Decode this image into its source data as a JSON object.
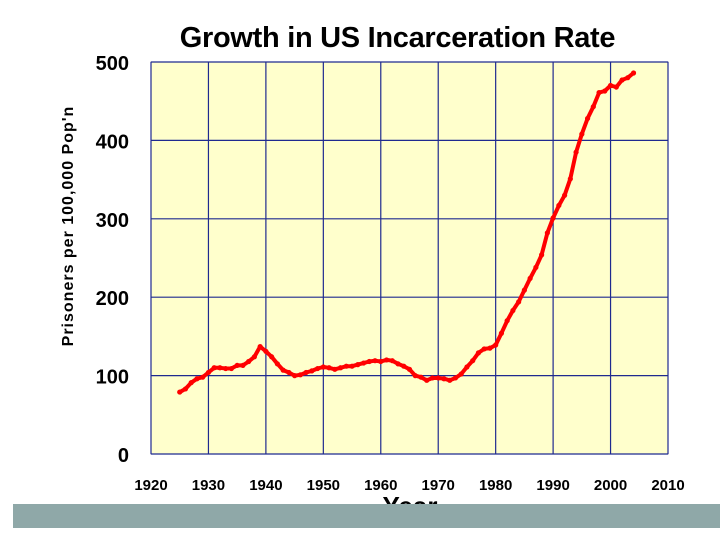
{
  "chart_data": {
    "type": "line",
    "title": "Growth in US Incarceration Rate",
    "xlabel": "Year",
    "ylabel": "Prisoners per 100,000 Pop'n",
    "xlim": [
      1920,
      2010
    ],
    "ylim": [
      0,
      500
    ],
    "x_ticks": [
      1920,
      1930,
      1940,
      1950,
      1960,
      1970,
      1980,
      1990,
      2000,
      2010
    ],
    "y_ticks": [
      0,
      100,
      200,
      300,
      400,
      500
    ],
    "grid": true,
    "legend": "none",
    "colors": {
      "plot_background": "#ffffcc",
      "grid": "#1f2a8f",
      "series": "#ff0000",
      "footer_bar": "#8fa8a8"
    },
    "series": [
      {
        "x": [
          1925,
          1926,
          1927,
          1928,
          1929,
          1930,
          1931,
          1932,
          1933,
          1934,
          1935,
          1936,
          1937,
          1938,
          1939,
          1940,
          1941,
          1942,
          1943,
          1944,
          1945,
          1946,
          1947,
          1948,
          1949,
          1950,
          1951,
          1952,
          1953,
          1954,
          1955,
          1956,
          1957,
          1958,
          1959,
          1960,
          1961,
          1962,
          1963,
          1964,
          1965,
          1966,
          1967,
          1968,
          1969,
          1970,
          1971,
          1972,
          1973,
          1974,
          1975,
          1976,
          1977,
          1978,
          1979,
          1980,
          1981,
          1982,
          1983,
          1984,
          1985,
          1986,
          1987,
          1988,
          1989,
          1990,
          1991,
          1992,
          1993,
          1994,
          1995,
          1996,
          1997,
          1998,
          1999,
          2000,
          2001,
          2002,
          2003,
          2004
        ],
        "values": [
          79,
          83,
          91,
          96,
          98,
          104,
          110,
          110,
          109,
          109,
          113,
          113,
          118,
          124,
          137,
          131,
          124,
          115,
          107,
          104,
          100,
          101,
          104,
          106,
          109,
          111,
          110,
          108,
          110,
          112,
          112,
          114,
          116,
          118,
          119,
          118,
          120,
          119,
          115,
          112,
          108,
          100,
          98,
          94,
          97,
          97,
          96,
          94,
          97,
          102,
          111,
          119,
          129,
          134,
          135,
          139,
          154,
          170,
          183,
          194,
          209,
          224,
          238,
          254,
          282,
          301,
          317,
          330,
          351,
          385,
          408,
          428,
          443,
          461,
          463,
          470,
          468,
          477,
          480,
          486
        ]
      }
    ]
  }
}
